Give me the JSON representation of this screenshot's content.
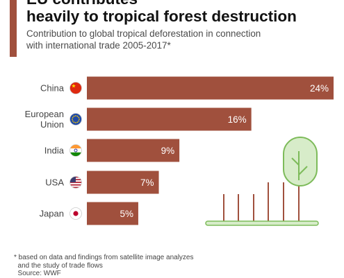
{
  "header": {
    "title_lines": [
      "EU contributes",
      "heavily to tropical forest destruction"
    ],
    "subtitle_lines": [
      "Contribution to global tropical deforestation in connection",
      "with international trade 2005-2017*"
    ]
  },
  "chart_data": {
    "type": "bar",
    "orientation": "horizontal",
    "categories": [
      "China",
      "European Union",
      "India",
      "USA",
      "Japan"
    ],
    "category_lines": [
      [
        "China"
      ],
      [
        "European",
        "Union"
      ],
      [
        "India"
      ],
      [
        "USA"
      ],
      [
        "Japan"
      ]
    ],
    "flags": [
      "china-flag",
      "eu-flag",
      "india-flag",
      "usa-flag",
      "japan-flag"
    ],
    "values": [
      24,
      16,
      9,
      7,
      5
    ],
    "value_labels": [
      "24%",
      "16%",
      "9%",
      "7%",
      "5%"
    ],
    "unit": "%",
    "xlim": [
      0,
      24
    ],
    "bar_color": "#a0503d",
    "grid": false,
    "legend": "none"
  },
  "colors": {
    "accent": "#a0503d",
    "tree_green": "#d7ecc9",
    "tree_outline": "#7dbb5a",
    "trunk": "#a0503d"
  },
  "illustration": "tree-and-stumps",
  "footnote": {
    "lines": [
      "* based on data and findings from satellite image analyzes",
      "  and the study of trade flows",
      "  Source: WWF"
    ]
  }
}
